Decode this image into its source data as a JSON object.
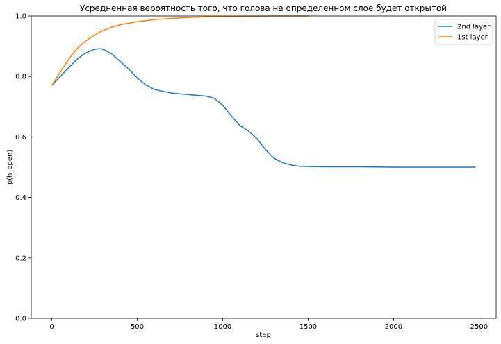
{
  "chart_data": {
    "type": "line",
    "title": "Усредненная вероятность того, что голова на определенном слое будет открытой",
    "xlabel": "step",
    "ylabel": "p(h_open)",
    "xlim": [
      -120,
      2600
    ],
    "ylim": [
      0,
      1
    ],
    "xticks": [
      0,
      500,
      1000,
      1500,
      2000,
      2500
    ],
    "yticks": [
      0.0,
      0.2,
      0.4,
      0.6,
      0.8,
      1.0
    ],
    "xtick_labels": [
      "0",
      "500",
      "1000",
      "1500",
      "2000",
      "2500"
    ],
    "ytick_labels": [
      "0.0",
      "0.2",
      "0.4",
      "0.6",
      "0.8",
      "1.0"
    ],
    "grid": false,
    "legend_position": "top-right",
    "series": [
      {
        "name": "2nd layer",
        "color": "#1f77b4",
        "x": [
          0,
          50,
          100,
          150,
          200,
          250,
          280,
          300,
          350,
          400,
          450,
          500,
          550,
          600,
          700,
          800,
          900,
          950,
          1000,
          1050,
          1100,
          1150,
          1200,
          1250,
          1300,
          1350,
          1400,
          1450,
          1500,
          1600,
          1800,
          2000,
          2200,
          2480
        ],
        "values": [
          0.77,
          0.8,
          0.83,
          0.858,
          0.878,
          0.89,
          0.892,
          0.89,
          0.875,
          0.85,
          0.825,
          0.795,
          0.772,
          0.757,
          0.745,
          0.74,
          0.735,
          0.728,
          0.705,
          0.67,
          0.638,
          0.62,
          0.595,
          0.558,
          0.53,
          0.515,
          0.507,
          0.503,
          0.502,
          0.501,
          0.501,
          0.5,
          0.5,
          0.5
        ]
      },
      {
        "name": "1st layer",
        "color": "#ff7f0e",
        "x": [
          0,
          50,
          100,
          150,
          200,
          250,
          300,
          350,
          400,
          500,
          600,
          700,
          800,
          900,
          1000,
          1100,
          1200,
          1300,
          1400,
          1500
        ],
        "values": [
          0.77,
          0.815,
          0.858,
          0.893,
          0.918,
          0.937,
          0.952,
          0.963,
          0.971,
          0.981,
          0.988,
          0.992,
          0.995,
          0.997,
          0.998,
          0.999,
          0.9995,
          1.0,
          1.0,
          1.0
        ]
      }
    ]
  }
}
